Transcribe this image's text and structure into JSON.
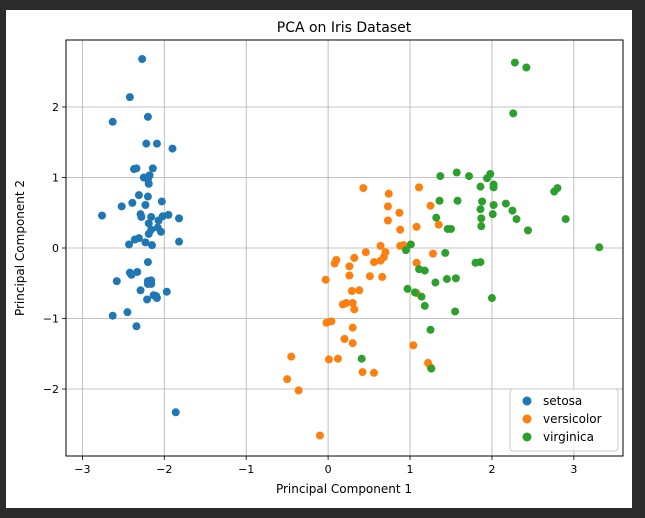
{
  "chart_data": {
    "type": "scatter",
    "title": "PCA on Iris Dataset",
    "xlabel": "Principal Component 1",
    "ylabel": "Principal Component 2",
    "xlim": [
      -3.2,
      3.6
    ],
    "ylim": [
      -2.95,
      2.95
    ],
    "xticks": [
      -3,
      -2,
      -1,
      0,
      1,
      2,
      3
    ],
    "yticks": [
      -2,
      -1,
      0,
      1,
      2
    ],
    "tick_labels_x": [
      "−3",
      "−2",
      "−1",
      "0",
      "1",
      "2",
      "3"
    ],
    "tick_labels_y": [
      "−2",
      "−1",
      "0",
      "1",
      "2"
    ],
    "grid": true,
    "legend": "lower right",
    "series": [
      {
        "name": "setosa",
        "color": "#1f77b4",
        "points": [
          [
            -2.27,
            2.68
          ],
          [
            -2.42,
            2.14
          ],
          [
            -2.63,
            1.79
          ],
          [
            -2.2,
            1.86
          ],
          [
            -2.22,
            1.48
          ],
          [
            -2.09,
            1.48
          ],
          [
            -1.9,
            1.41
          ],
          [
            -2.37,
            1.12
          ],
          [
            -2.34,
            1.13
          ],
          [
            -2.14,
            1.13
          ],
          [
            -2.18,
            1.03
          ],
          [
            -2.25,
            1.0
          ],
          [
            -2.2,
            0.97
          ],
          [
            -2.19,
            0.91
          ],
          [
            -2.31,
            0.75
          ],
          [
            -2.2,
            0.73
          ],
          [
            -2.03,
            0.66
          ],
          [
            -2.39,
            0.64
          ],
          [
            -2.52,
            0.59
          ],
          [
            -2.23,
            0.61
          ],
          [
            -2.29,
            0.48
          ],
          [
            -1.95,
            0.47
          ],
          [
            -2.28,
            0.44
          ],
          [
            -2.02,
            0.45
          ],
          [
            -2.16,
            0.44
          ],
          [
            -2.07,
            0.39
          ],
          [
            -1.82,
            0.42
          ],
          [
            -2.76,
            0.46
          ],
          [
            -2.19,
            0.35
          ],
          [
            -2.08,
            0.29
          ],
          [
            -2.16,
            0.26
          ],
          [
            -2.19,
            0.2
          ],
          [
            -2.04,
            0.23
          ],
          [
            -2.31,
            0.14
          ],
          [
            -2.36,
            0.12
          ],
          [
            -2.23,
            0.08
          ],
          [
            -1.82,
            0.09
          ],
          [
            -2.43,
            0.05
          ],
          [
            -2.15,
            0.04
          ],
          [
            -2.2,
            -0.2
          ],
          [
            -2.33,
            -0.34
          ],
          [
            -2.42,
            -0.35
          ],
          [
            -2.4,
            -0.38
          ],
          [
            -2.2,
            -0.47
          ],
          [
            -2.16,
            -0.46
          ],
          [
            -2.2,
            -0.51
          ],
          [
            -2.16,
            -0.51
          ],
          [
            -2.58,
            -0.47
          ],
          [
            -2.29,
            -0.6
          ],
          [
            -2.13,
            -0.67
          ],
          [
            -2.1,
            -0.68
          ],
          [
            -1.97,
            -0.62
          ],
          [
            -2.09,
            -0.71
          ],
          [
            -2.21,
            -0.73
          ],
          [
            -2.45,
            -0.91
          ],
          [
            -2.63,
            -0.96
          ],
          [
            -2.34,
            -1.11
          ],
          [
            -1.86,
            -2.33
          ]
        ]
      },
      {
        "name": "versicolor",
        "color": "#ff7f0e",
        "points": [
          [
            0.43,
            0.85
          ],
          [
            1.11,
            0.86
          ],
          [
            0.74,
            0.77
          ],
          [
            0.73,
            0.59
          ],
          [
            0.87,
            0.5
          ],
          [
            0.73,
            0.39
          ],
          [
            1.25,
            0.6
          ],
          [
            0.88,
            0.26
          ],
          [
            1.08,
            0.3
          ],
          [
            1.35,
            0.33
          ],
          [
            0.88,
            0.03
          ],
          [
            0.64,
            0.03
          ],
          [
            0.46,
            -0.06
          ],
          [
            0.7,
            -0.06
          ],
          [
            0.92,
            0.04
          ],
          [
            1.28,
            -0.08
          ],
          [
            0.68,
            -0.13
          ],
          [
            0.64,
            -0.18
          ],
          [
            0.32,
            -0.14
          ],
          [
            0.1,
            -0.17
          ],
          [
            0.08,
            -0.22
          ],
          [
            0.56,
            -0.2
          ],
          [
            0.26,
            -0.26
          ],
          [
            1.08,
            -0.21
          ],
          [
            0.66,
            -0.41
          ],
          [
            0.26,
            -0.39
          ],
          [
            0.51,
            -0.4
          ],
          [
            -0.03,
            -0.45
          ],
          [
            1.08,
            -0.64
          ],
          [
            0.38,
            -0.6
          ],
          [
            0.29,
            -0.61
          ],
          [
            0.22,
            -0.78
          ],
          [
            0.3,
            -0.78
          ],
          [
            0.18,
            -0.8
          ],
          [
            0.32,
            -0.87
          ],
          [
            0.04,
            -1.04
          ],
          [
            -0.02,
            -1.06
          ],
          [
            0.3,
            -1.13
          ],
          [
            0.2,
            -1.29
          ],
          [
            0.3,
            -1.35
          ],
          [
            1.04,
            -1.38
          ],
          [
            0.12,
            -1.57
          ],
          [
            0.01,
            -1.58
          ],
          [
            1.22,
            -1.63
          ],
          [
            1.25,
            -1.69
          ],
          [
            -0.45,
            -1.54
          ],
          [
            0.42,
            -1.76
          ],
          [
            0.56,
            -1.77
          ],
          [
            -0.5,
            -1.86
          ],
          [
            -0.36,
            -2.02
          ],
          [
            -0.1,
            -2.66
          ]
        ]
      },
      {
        "name": "virginica",
        "color": "#2ca02c",
        "points": [
          [
            2.28,
            2.63
          ],
          [
            2.42,
            2.56
          ],
          [
            2.26,
            1.91
          ],
          [
            1.57,
            1.07
          ],
          [
            1.72,
            1.02
          ],
          [
            1.37,
            1.02
          ],
          [
            1.98,
            1.05
          ],
          [
            1.94,
            0.99
          ],
          [
            2.02,
            0.9
          ],
          [
            1.86,
            0.87
          ],
          [
            2.02,
            0.86
          ],
          [
            2.8,
            0.85
          ],
          [
            2.76,
            0.8
          ],
          [
            1.36,
            0.67
          ],
          [
            1.58,
            0.67
          ],
          [
            1.88,
            0.66
          ],
          [
            2.17,
            0.63
          ],
          [
            2.02,
            0.61
          ],
          [
            1.86,
            0.55
          ],
          [
            2.25,
            0.53
          ],
          [
            2.01,
            0.48
          ],
          [
            1.32,
            0.43
          ],
          [
            1.87,
            0.42
          ],
          [
            2.3,
            0.41
          ],
          [
            2.9,
            0.41
          ],
          [
            1.87,
            0.31
          ],
          [
            1.46,
            0.27
          ],
          [
            1.5,
            0.27
          ],
          [
            2.44,
            0.25
          ],
          [
            3.31,
            0.01
          ],
          [
            1.01,
            0.05
          ],
          [
            0.95,
            -0.03
          ],
          [
            1.43,
            -0.07
          ],
          [
            1.11,
            -0.3
          ],
          [
            1.18,
            -0.32
          ],
          [
            1.8,
            -0.21
          ],
          [
            1.86,
            -0.2
          ],
          [
            1.56,
            -0.43
          ],
          [
            1.45,
            -0.44
          ],
          [
            1.31,
            -0.49
          ],
          [
            2.0,
            -0.71
          ],
          [
            0.97,
            -0.58
          ],
          [
            1.06,
            -0.63
          ],
          [
            1.14,
            -0.69
          ],
          [
            1.18,
            -0.82
          ],
          [
            1.55,
            -0.9
          ],
          [
            1.25,
            -1.16
          ],
          [
            0.41,
            -1.57
          ],
          [
            1.26,
            -1.71
          ]
        ]
      }
    ]
  }
}
